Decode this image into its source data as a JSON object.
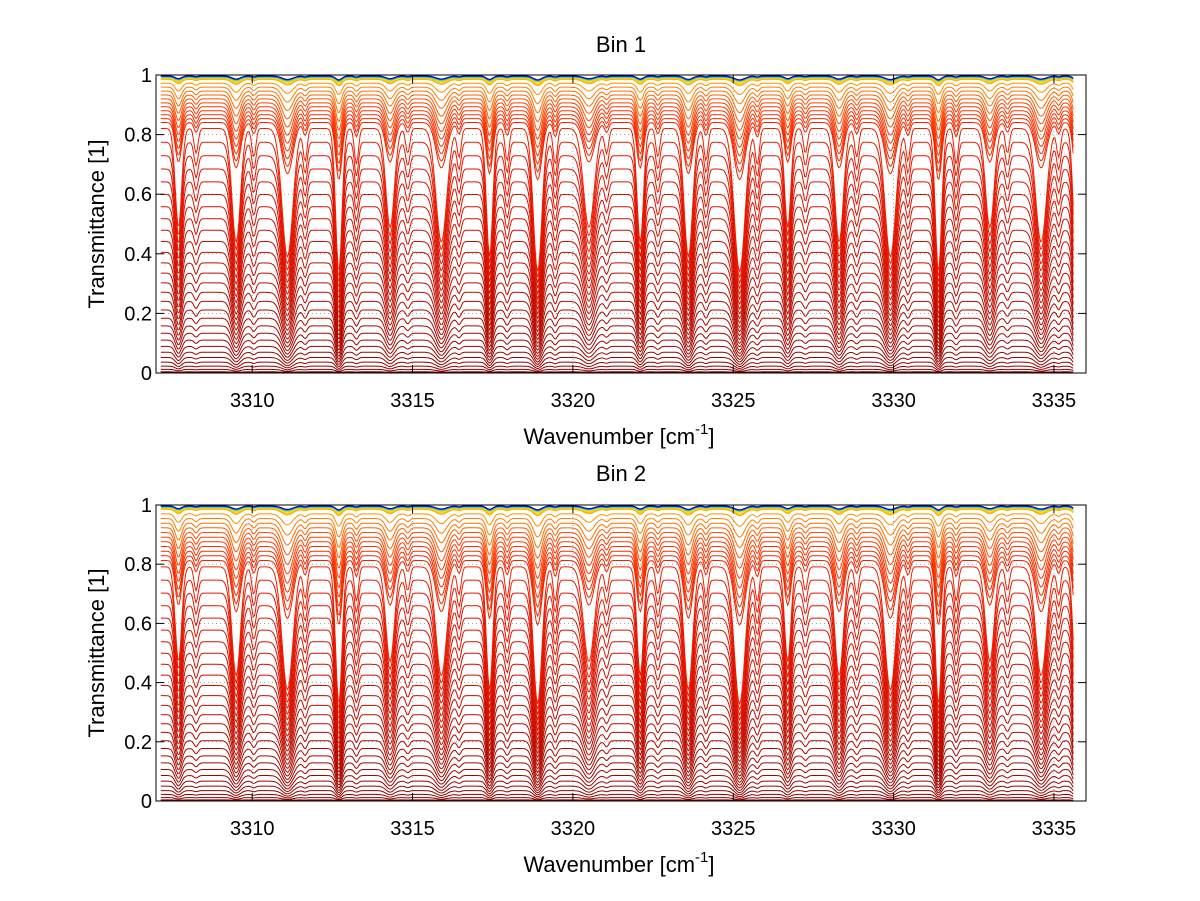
{
  "chart_data": [
    {
      "type": "line",
      "title": "Bin 1",
      "xlabel": "Wavenumber [cm",
      "xlabel_sup": "-1",
      "xlabel_end": "]",
      "ylabel": "Transmittance [1]",
      "xlim": [
        3307.0,
        3336.0
      ],
      "ylim": [
        0,
        1
      ],
      "xticks": [
        "3310",
        "3315",
        "3320",
        "3325",
        "3330",
        "3335"
      ],
      "yticks": [
        "0",
        "0.2",
        "0.4",
        "0.6",
        "0.8",
        "1"
      ],
      "grid": true,
      "series_count": 48,
      "colormap": "jet (dark red → red → orange → yellow → blue)",
      "absorption_line_centers": [
        3307.7,
        3309.5,
        3311.1,
        3312.7,
        3314.3,
        3315.9,
        3317.4,
        3318.9,
        3320.5,
        3322.1,
        3323.6,
        3325.2,
        3326.7,
        3328.3,
        3329.9,
        3331.4,
        3333.0,
        3334.6,
        3335.7
      ],
      "upper_band_level": 0.83
    },
    {
      "type": "line",
      "title": "Bin 2",
      "xlabel": "Wavenumber [cm",
      "xlabel_sup": "-1",
      "xlabel_end": "]",
      "ylabel": "Transmittance [1]",
      "xlim": [
        3307.0,
        3336.0
      ],
      "ylim": [
        0,
        1
      ],
      "xticks": [
        "3310",
        "3315",
        "3320",
        "3325",
        "3330",
        "3335"
      ],
      "yticks": [
        "0",
        "0.2",
        "0.4",
        "0.6",
        "0.8",
        "1"
      ],
      "grid": true,
      "series_count": 48,
      "colormap": "jet (dark red → red → orange → yellow → blue)",
      "absorption_line_centers": [
        3307.7,
        3309.5,
        3311.1,
        3312.7,
        3314.3,
        3315.9,
        3317.4,
        3318.9,
        3320.5,
        3322.1,
        3323.6,
        3325.2,
        3326.7,
        3328.3,
        3329.9,
        3331.4,
        3333.0,
        3334.6,
        3335.7
      ],
      "upper_band_level": 0.8
    }
  ]
}
